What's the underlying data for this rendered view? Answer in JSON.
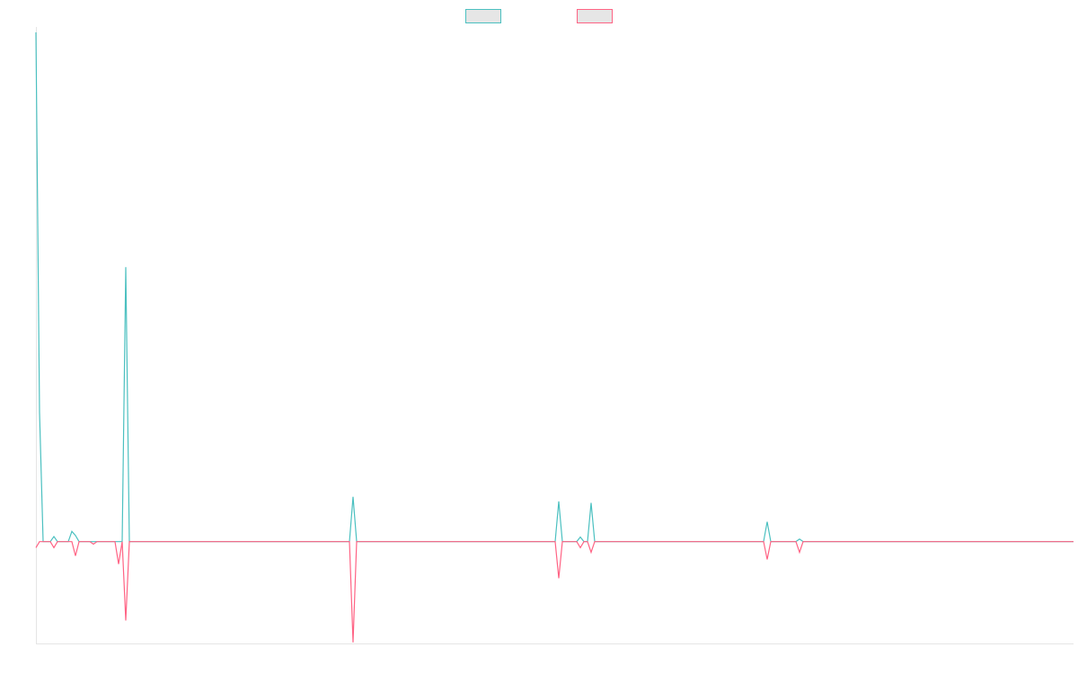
{
  "chart_data": {
    "type": "line",
    "xlim": [
      0,
      288.75
    ],
    "ylim": [
      -20,
      100
    ],
    "series": [
      {
        "color": "#4bc0c0",
        "x": [
          0,
          1,
          2,
          4,
          5,
          6,
          9,
          10,
          11,
          12,
          24,
          25,
          26,
          87.25,
          88.25,
          89.25,
          144.5,
          145.5,
          146.5,
          150.5,
          151.5,
          152.5,
          153.5,
          154.5,
          155.5,
          202.5,
          203.5,
          204.5,
          211.5,
          212.5,
          213.5,
          288.75
        ],
        "values": [
          100,
          25.4,
          0,
          0,
          1,
          0,
          0,
          2,
          1.2,
          0,
          0,
          53.9,
          0,
          0,
          8.8,
          0,
          0,
          7.9,
          0,
          0,
          0.9,
          0,
          0,
          7.6,
          0,
          0,
          3.9,
          0,
          0,
          0.5,
          0,
          0
        ]
      },
      {
        "color": "#ff6384",
        "x": [
          0,
          1,
          4,
          5,
          6,
          10,
          11,
          12,
          15,
          16,
          17,
          22,
          23,
          24,
          25,
          26,
          87.25,
          88.25,
          89.25,
          144.5,
          145.5,
          146.5,
          150.5,
          151.5,
          152.5,
          153.5,
          154.5,
          155.5,
          202.5,
          203.5,
          204.5,
          211.5,
          212.5,
          213.5,
          288.75
        ],
        "values": [
          -1.2,
          0,
          0,
          -1.2,
          0,
          0,
          -2.8,
          0,
          0,
          -0.5,
          0,
          0,
          -4.4,
          0,
          -15.5,
          0,
          0,
          -19.8,
          0,
          0,
          -7.2,
          0,
          0,
          -1.2,
          0,
          0,
          -2.1,
          0,
          0,
          -3.5,
          0,
          0,
          -2.1,
          0,
          0
        ]
      }
    ]
  }
}
